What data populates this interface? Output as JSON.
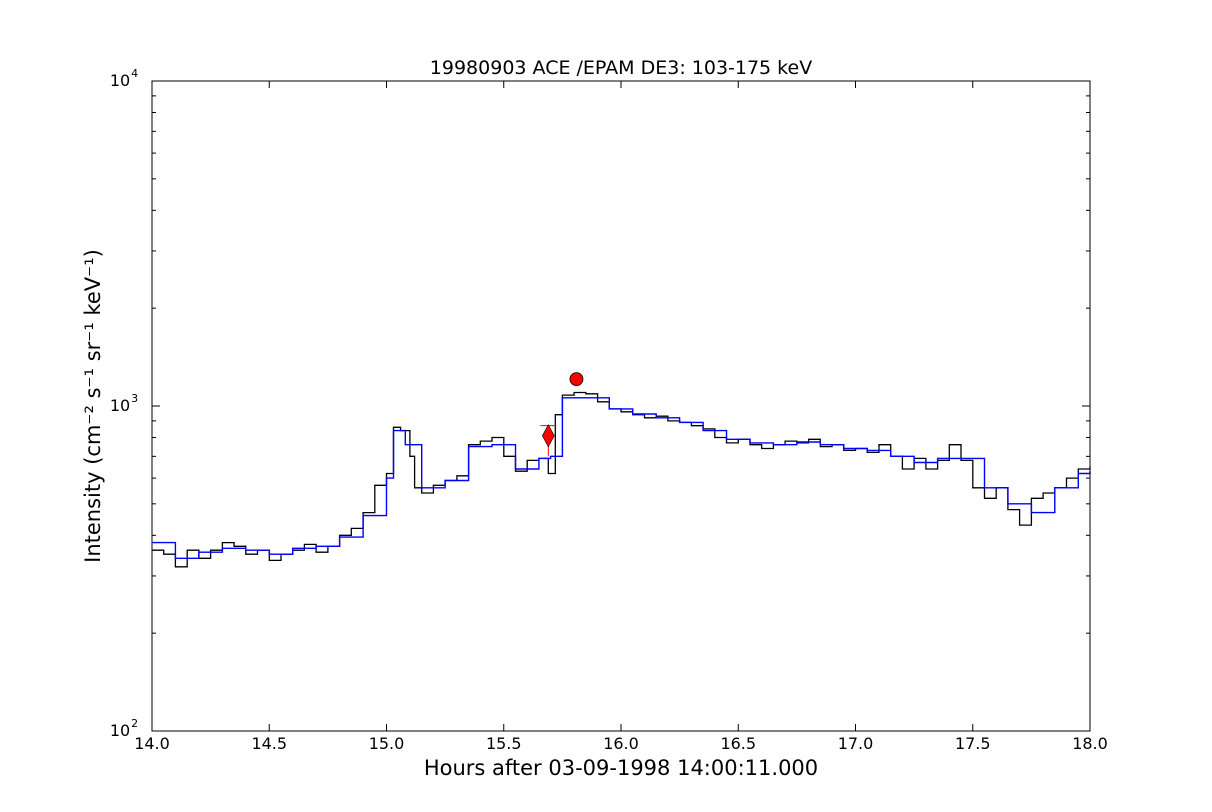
{
  "chart_data": {
    "type": "line",
    "title": "19980903 ACE /EPAM DE3: 103-175 keV",
    "xlabel": "Hours after 03-09-1998 14:00:11.000",
    "ylabel": "Intensity (cm⁻² s⁻¹ sr⁻¹ keV⁻¹)",
    "xlim": [
      14.0,
      18.0
    ],
    "ylim": [
      100,
      10000
    ],
    "yscale": "log",
    "grid": false,
    "x_ticks": [
      "14.0",
      "14.5",
      "15.0",
      "15.5",
      "16.0",
      "16.5",
      "17.0",
      "17.5",
      "18.0"
    ],
    "y_ticks": [
      {
        "base": "10",
        "exp": "2"
      },
      {
        "base": "10",
        "exp": "3"
      },
      {
        "base": "10",
        "exp": "4"
      }
    ],
    "series": [
      {
        "color": "#000000",
        "style": "steps",
        "points": [
          [
            14.0,
            360
          ],
          [
            14.05,
            350
          ],
          [
            14.1,
            320
          ],
          [
            14.15,
            360
          ],
          [
            14.2,
            340
          ],
          [
            14.25,
            360
          ],
          [
            14.3,
            380
          ],
          [
            14.35,
            370
          ],
          [
            14.4,
            350
          ],
          [
            14.45,
            360
          ],
          [
            14.5,
            335
          ],
          [
            14.55,
            350
          ],
          [
            14.6,
            360
          ],
          [
            14.65,
            375
          ],
          [
            14.7,
            355
          ],
          [
            14.75,
            370
          ],
          [
            14.8,
            400
          ],
          [
            14.85,
            420
          ],
          [
            14.9,
            470
          ],
          [
            14.95,
            570
          ],
          [
            15.0,
            620
          ],
          [
            15.03,
            860
          ],
          [
            15.06,
            840
          ],
          [
            15.1,
            700
          ],
          [
            15.12,
            560
          ],
          [
            15.15,
            540
          ],
          [
            15.2,
            570
          ],
          [
            15.25,
            590
          ],
          [
            15.3,
            610
          ],
          [
            15.35,
            760
          ],
          [
            15.4,
            780
          ],
          [
            15.45,
            800
          ],
          [
            15.5,
            700
          ],
          [
            15.55,
            630
          ],
          [
            15.6,
            680
          ],
          [
            15.65,
            690
          ],
          [
            15.69,
            620
          ],
          [
            15.72,
            940
          ],
          [
            15.75,
            1080
          ],
          [
            15.8,
            1100
          ],
          [
            15.85,
            1090
          ],
          [
            15.9,
            1030
          ],
          [
            15.95,
            980
          ],
          [
            16.0,
            960
          ],
          [
            16.05,
            940
          ],
          [
            16.1,
            920
          ],
          [
            16.15,
            930
          ],
          [
            16.2,
            900
          ],
          [
            16.25,
            890
          ],
          [
            16.3,
            870
          ],
          [
            16.35,
            850
          ],
          [
            16.4,
            800
          ],
          [
            16.45,
            770
          ],
          [
            16.5,
            790
          ],
          [
            16.55,
            760
          ],
          [
            16.6,
            740
          ],
          [
            16.65,
            760
          ],
          [
            16.7,
            780
          ],
          [
            16.75,
            770
          ],
          [
            16.8,
            790
          ],
          [
            16.85,
            750
          ],
          [
            16.9,
            760
          ],
          [
            16.95,
            730
          ],
          [
            17.0,
            740
          ],
          [
            17.05,
            720
          ],
          [
            17.1,
            760
          ],
          [
            17.15,
            700
          ],
          [
            17.2,
            640
          ],
          [
            17.25,
            690
          ],
          [
            17.3,
            640
          ],
          [
            17.35,
            680
          ],
          [
            17.4,
            760
          ],
          [
            17.45,
            680
          ],
          [
            17.5,
            560
          ],
          [
            17.55,
            520
          ],
          [
            17.6,
            560
          ],
          [
            17.65,
            480
          ],
          [
            17.7,
            430
          ],
          [
            17.75,
            520
          ],
          [
            17.8,
            540
          ],
          [
            17.85,
            560
          ],
          [
            17.9,
            600
          ],
          [
            17.95,
            640
          ],
          [
            18.0,
            650
          ]
        ]
      },
      {
        "color": "#0000ff",
        "style": "steps",
        "points": [
          [
            14.0,
            380
          ],
          [
            14.1,
            340
          ],
          [
            14.2,
            355
          ],
          [
            14.3,
            365
          ],
          [
            14.4,
            360
          ],
          [
            14.5,
            350
          ],
          [
            14.6,
            365
          ],
          [
            14.7,
            370
          ],
          [
            14.8,
            395
          ],
          [
            14.9,
            460
          ],
          [
            15.0,
            600
          ],
          [
            15.03,
            840
          ],
          [
            15.08,
            760
          ],
          [
            15.15,
            560
          ],
          [
            15.25,
            590
          ],
          [
            15.35,
            750
          ],
          [
            15.45,
            760
          ],
          [
            15.55,
            640
          ],
          [
            15.65,
            690
          ],
          [
            15.7,
            700
          ],
          [
            15.75,
            1060
          ],
          [
            15.85,
            1060
          ],
          [
            15.95,
            980
          ],
          [
            16.05,
            945
          ],
          [
            16.15,
            920
          ],
          [
            16.25,
            890
          ],
          [
            16.35,
            840
          ],
          [
            16.45,
            790
          ],
          [
            16.55,
            770
          ],
          [
            16.65,
            760
          ],
          [
            16.75,
            775
          ],
          [
            16.85,
            760
          ],
          [
            16.95,
            740
          ],
          [
            17.05,
            730
          ],
          [
            17.15,
            700
          ],
          [
            17.25,
            670
          ],
          [
            17.35,
            690
          ],
          [
            17.45,
            690
          ],
          [
            17.55,
            560
          ],
          [
            17.65,
            500
          ],
          [
            17.75,
            470
          ],
          [
            17.85,
            560
          ],
          [
            17.95,
            620
          ],
          [
            18.0,
            630
          ]
        ]
      }
    ],
    "markers": [
      {
        "shape": "diamond",
        "color": "#ff0000",
        "x": 15.69,
        "y": 810,
        "error_low": 700,
        "error_high": 870
      },
      {
        "shape": "circle",
        "color": "#ff0000",
        "x": 15.81,
        "y": 1210
      }
    ]
  }
}
